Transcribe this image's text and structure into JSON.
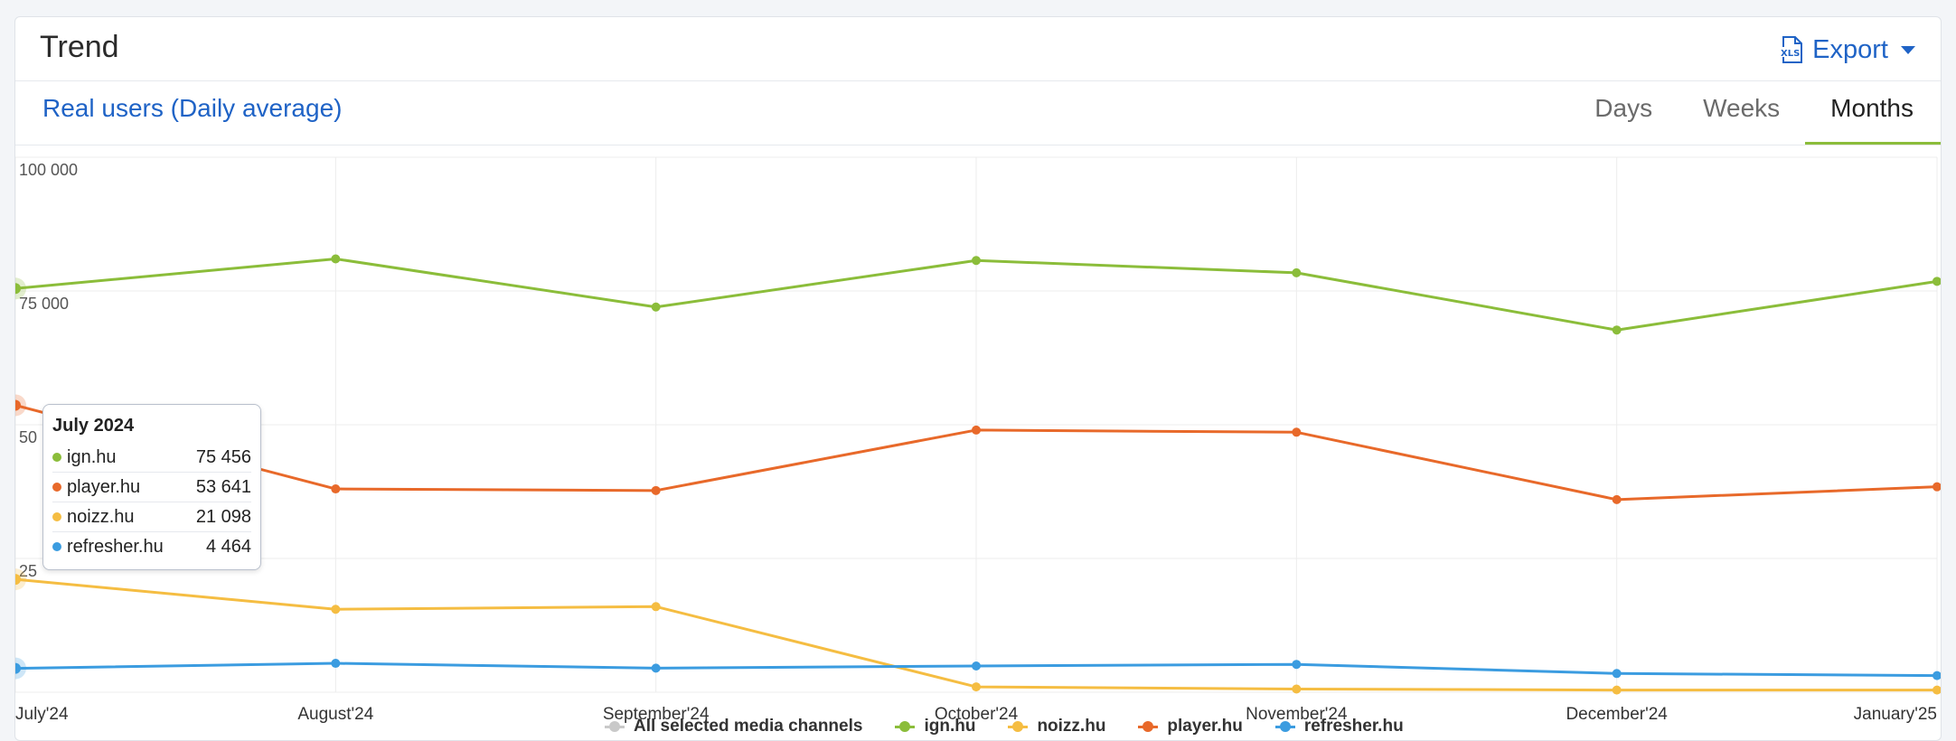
{
  "header": {
    "title": "Trend",
    "export_label": "Export"
  },
  "metric": {
    "label": "Real users (Daily average)"
  },
  "tabs": [
    {
      "label": "Days"
    },
    {
      "label": "Weeks"
    },
    {
      "label": "Months",
      "active": true
    }
  ],
  "chart_data": {
    "type": "line",
    "x": [
      "July'24",
      "August'24",
      "September'24",
      "October'24",
      "November'24",
      "December'24",
      "January'25"
    ],
    "y_ticks": [
      "100 000",
      "75 000",
      "50",
      "25"
    ],
    "ylim": [
      0,
      100000
    ],
    "grid": true,
    "series": [
      {
        "name": "ign.hu",
        "color": "#8bbd3a",
        "values": [
          75456,
          81000,
          72000,
          80700,
          78400,
          67700,
          76800
        ]
      },
      {
        "name": "player.hu",
        "color": "#e8692a",
        "values": [
          53641,
          38000,
          37700,
          49000,
          48600,
          36000,
          38400
        ]
      },
      {
        "name": "noizz.hu",
        "color": "#f5bd42",
        "values": [
          21098,
          15500,
          16000,
          1000,
          600,
          400,
          400
        ]
      },
      {
        "name": "refresher.hu",
        "color": "#3b9ce0",
        "values": [
          4464,
          5400,
          4500,
          4900,
          5200,
          3500,
          3100
        ]
      }
    ],
    "legend_position": "bottom"
  },
  "tooltip": {
    "title": "July 2024",
    "rows": [
      {
        "name": "ign.hu",
        "value": "75 456",
        "color": "#8bbd3a"
      },
      {
        "name": "player.hu",
        "value": "53 641",
        "color": "#e8692a"
      },
      {
        "name": "noizz.hu",
        "value": "21 098",
        "color": "#f5bd42"
      },
      {
        "name": "refresher.hu",
        "value": "4 464",
        "color": "#3b9ce0"
      }
    ]
  },
  "legend": [
    {
      "label": "All selected media channels",
      "color": "#c9c9c9"
    },
    {
      "label": "ign.hu",
      "color": "#8bbd3a"
    },
    {
      "label": "noizz.hu",
      "color": "#f5bd42"
    },
    {
      "label": "player.hu",
      "color": "#e8692a"
    },
    {
      "label": "refresher.hu",
      "color": "#3b9ce0"
    }
  ],
  "colors": {
    "accent": "#1f63c6",
    "tab_underline": "#8bbd3a"
  },
  "icons": {
    "export": "xls-file-icon",
    "dropdown": "caret-down-icon"
  }
}
